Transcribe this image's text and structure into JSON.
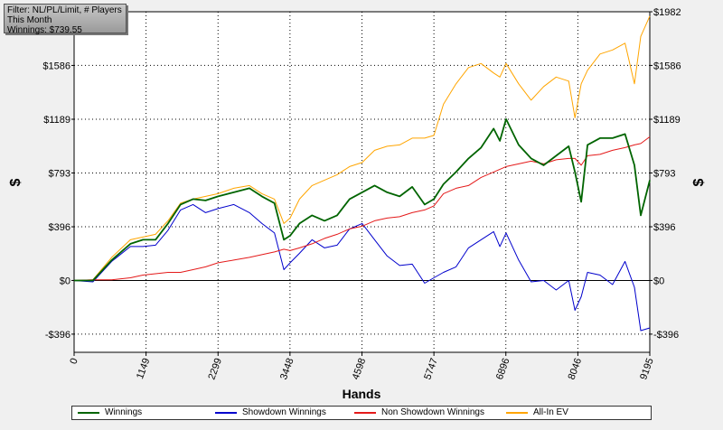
{
  "filter_box": {
    "line1": "Filter: NL/PL/Limit, # Players",
    "line2": "This Month",
    "line3": "Winnings: $739.55"
  },
  "chart_data": {
    "type": "line",
    "title": "",
    "xlabel": "Hands",
    "ylabel": "$",
    "xlim": [
      0,
      9195
    ],
    "ylim": [
      -530,
      1982
    ],
    "x_ticks": [
      0,
      1149,
      2299,
      3448,
      4598,
      5747,
      6896,
      8046,
      9195
    ],
    "y_ticks": [
      -396,
      0,
      396,
      793,
      1189,
      1586,
      1982
    ],
    "y_tick_labels": [
      "-$396",
      "$0",
      "$396",
      "$793",
      "$1189",
      "$1586",
      "$1982"
    ],
    "grid": true,
    "legend_position": "bottom",
    "series": [
      {
        "name": "Winnings",
        "color": "#006400",
        "x": [
          0,
          300,
          600,
          900,
          1100,
          1300,
          1500,
          1700,
          1900,
          2100,
          2300,
          2550,
          2800,
          3000,
          3200,
          3350,
          3450,
          3600,
          3800,
          4000,
          4200,
          4400,
          4600,
          4800,
          5000,
          5200,
          5400,
          5600,
          5747,
          5900,
          6100,
          6300,
          6500,
          6700,
          6800,
          6900,
          7100,
          7300,
          7500,
          7700,
          7900,
          8000,
          8100,
          8200,
          8400,
          8600,
          8800,
          8950,
          9050,
          9195
        ],
        "values": [
          0,
          0,
          150,
          270,
          300,
          300,
          420,
          560,
          600,
          590,
          620,
          650,
          680,
          620,
          570,
          300,
          330,
          420,
          480,
          440,
          480,
          600,
          650,
          700,
          650,
          620,
          690,
          560,
          600,
          710,
          800,
          900,
          980,
          1120,
          1030,
          1190,
          1000,
          900,
          850,
          920,
          990,
          800,
          580,
          1000,
          1050,
          1050,
          1080,
          850,
          480,
          739.55
        ]
      },
      {
        "name": "Showdown Winnings",
        "color": "#0000cc",
        "x": [
          0,
          300,
          600,
          900,
          1100,
          1300,
          1500,
          1700,
          1900,
          2100,
          2300,
          2550,
          2800,
          3000,
          3200,
          3350,
          3450,
          3600,
          3800,
          4000,
          4200,
          4400,
          4600,
          4800,
          5000,
          5200,
          5400,
          5600,
          5747,
          5900,
          6100,
          6300,
          6500,
          6700,
          6800,
          6900,
          7100,
          7300,
          7500,
          7700,
          7900,
          8000,
          8100,
          8200,
          8400,
          8600,
          8800,
          8950,
          9050,
          9195
        ],
        "values": [
          0,
          -10,
          140,
          250,
          250,
          260,
          370,
          520,
          560,
          500,
          530,
          560,
          500,
          420,
          350,
          80,
          130,
          200,
          300,
          240,
          260,
          380,
          420,
          300,
          180,
          110,
          120,
          -20,
          20,
          60,
          100,
          240,
          300,
          360,
          250,
          350,
          150,
          -10,
          0,
          -70,
          0,
          -220,
          -120,
          60,
          40,
          -30,
          140,
          -50,
          -370,
          -350
        ]
      },
      {
        "name": "Non Showdown Winnings",
        "color": "#e41a1a",
        "x": [
          0,
          300,
          600,
          900,
          1100,
          1300,
          1500,
          1700,
          1900,
          2100,
          2300,
          2550,
          2800,
          3000,
          3200,
          3350,
          3450,
          3600,
          3800,
          4000,
          4200,
          4400,
          4600,
          4800,
          5000,
          5200,
          5400,
          5600,
          5747,
          5900,
          6100,
          6300,
          6500,
          6700,
          6800,
          6900,
          7100,
          7300,
          7500,
          7700,
          7900,
          8000,
          8100,
          8200,
          8400,
          8600,
          8800,
          8950,
          9050,
          9195
        ],
        "values": [
          0,
          5,
          5,
          20,
          40,
          50,
          60,
          60,
          80,
          100,
          130,
          150,
          170,
          190,
          210,
          230,
          220,
          240,
          270,
          310,
          340,
          380,
          400,
          440,
          460,
          470,
          500,
          520,
          550,
          640,
          680,
          700,
          760,
          800,
          820,
          840,
          860,
          880,
          860,
          890,
          900,
          900,
          850,
          920,
          930,
          960,
          980,
          1000,
          1010,
          1060
        ]
      },
      {
        "name": "All-In EV",
        "color": "#ffa500",
        "x": [
          0,
          300,
          600,
          900,
          1100,
          1300,
          1500,
          1700,
          1900,
          2100,
          2300,
          2550,
          2800,
          3000,
          3200,
          3350,
          3450,
          3600,
          3800,
          4000,
          4200,
          4400,
          4600,
          4800,
          5000,
          5200,
          5400,
          5600,
          5747,
          5900,
          6100,
          6300,
          6500,
          6700,
          6800,
          6900,
          7100,
          7300,
          7500,
          7700,
          7900,
          8000,
          8100,
          8200,
          8400,
          8600,
          8800,
          8950,
          9050,
          9195
        ],
        "values": [
          0,
          5,
          170,
          300,
          320,
          340,
          440,
          570,
          600,
          620,
          640,
          680,
          700,
          640,
          600,
          420,
          460,
          600,
          700,
          740,
          780,
          840,
          870,
          960,
          990,
          1000,
          1050,
          1050,
          1070,
          1300,
          1450,
          1570,
          1600,
          1530,
          1500,
          1600,
          1450,
          1330,
          1430,
          1500,
          1470,
          1200,
          1450,
          1550,
          1670,
          1700,
          1750,
          1450,
          1800,
          1950
        ]
      }
    ]
  }
}
